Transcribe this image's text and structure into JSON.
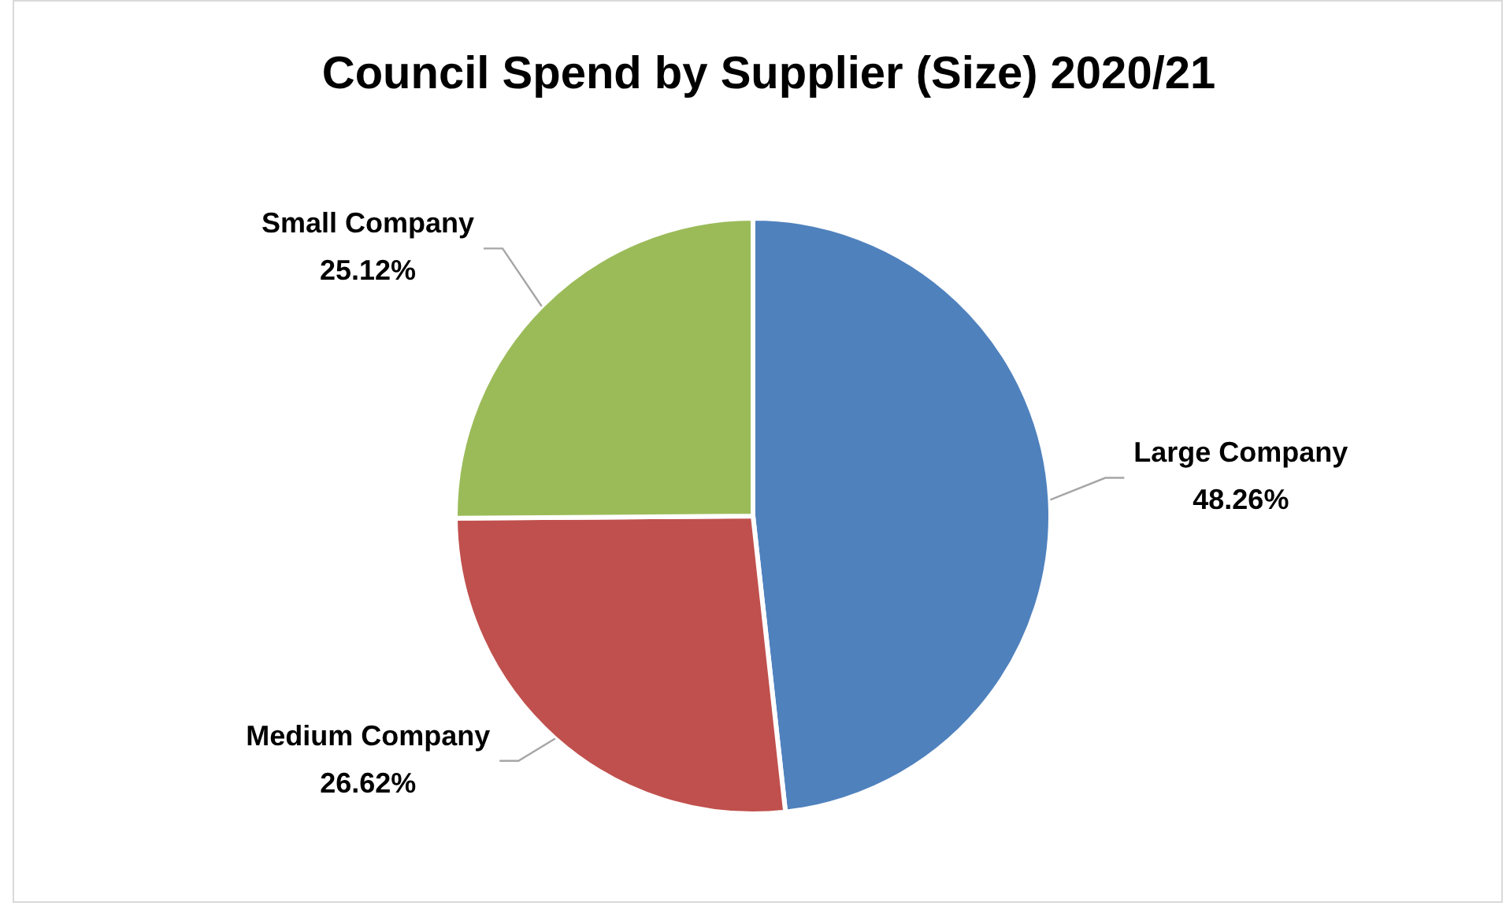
{
  "chart_data": {
    "type": "pie",
    "title": "Council Spend by Supplier (Size) 2020/21",
    "categories": [
      "Large Company",
      "Medium Company",
      "Small Company"
    ],
    "values": [
      48.26,
      26.62,
      25.12
    ],
    "colors": [
      "#4f81bd",
      "#c0504d",
      "#9bbb59"
    ],
    "value_labels": [
      "48.26%",
      "26.62%",
      "25.12%"
    ],
    "legend": false
  }
}
